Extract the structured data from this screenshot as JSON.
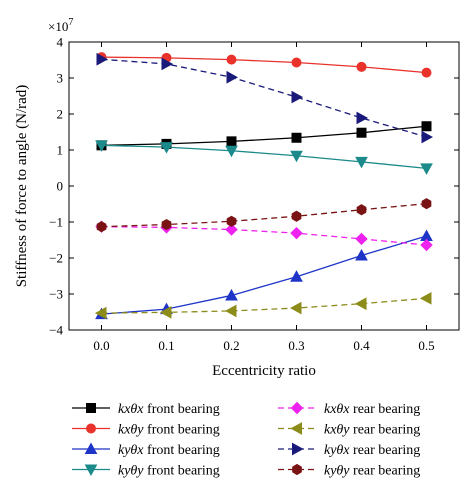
{
  "chart_data": {
    "type": "line",
    "xlabel": "Eccentricity ratio",
    "ylabel": "Stiffness of force to angle (N/rad)",
    "y_multiplier_label": "×10",
    "y_multiplier_exp": "7",
    "x": [
      0.0,
      0.1,
      0.2,
      0.3,
      0.4,
      0.5
    ],
    "x_tick_labels": [
      "0.0",
      "0.1",
      "0.2",
      "0.3",
      "0.4",
      "0.5"
    ],
    "xlim": [
      -0.05,
      0.55
    ],
    "ylim": [
      -4,
      4
    ],
    "y_ticks": [
      -4,
      -3,
      -2,
      -1,
      0,
      1,
      2,
      3,
      4
    ],
    "y_tick_labels": [
      "−4",
      "−3",
      "−2",
      "−1",
      "0",
      "1",
      "2",
      "3",
      "4"
    ],
    "grid": false,
    "legend_position": "bottom",
    "series": [
      {
        "name": "kxθx front bearing",
        "label_main": "kxθx",
        "label_suffix": " front bearing",
        "color": "#000000",
        "dash": "solid",
        "marker": "square",
        "values": [
          1.13,
          1.17,
          1.24,
          1.34,
          1.48,
          1.66
        ]
      },
      {
        "name": "kxθy front bearing",
        "label_main": "kxθy",
        "label_suffix": " front bearing",
        "color": "#e8322b",
        "dash": "solid",
        "marker": "circle",
        "values": [
          3.58,
          3.56,
          3.51,
          3.43,
          3.31,
          3.15
        ]
      },
      {
        "name": "kyθx front bearing",
        "label_main": "kyθx",
        "label_suffix": " front bearing",
        "color": "#1f35c8",
        "dash": "solid",
        "marker": "triangle-up",
        "values": [
          -3.56,
          -3.42,
          -3.04,
          -2.52,
          -1.93,
          -1.39
        ]
      },
      {
        "name": "kyθy front bearing",
        "label_main": "kyθy",
        "label_suffix": " front bearing",
        "color": "#1b8a8a",
        "dash": "solid",
        "marker": "triangle-down",
        "values": [
          1.13,
          1.08,
          0.98,
          0.84,
          0.67,
          0.49
        ]
      },
      {
        "name": "kxθx rear bearing",
        "label_main": "kxθx",
        "label_suffix": " rear bearing",
        "color": "#ee22ee",
        "dash": "dashed",
        "marker": "diamond",
        "values": [
          -1.13,
          -1.15,
          -1.21,
          -1.31,
          -1.47,
          -1.64
        ]
      },
      {
        "name": "kxθy rear bearing",
        "label_main": "kxθy",
        "label_suffix": " rear bearing",
        "color": "#8c8c1a",
        "dash": "dashed",
        "marker": "triangle-left",
        "values": [
          -3.53,
          -3.51,
          -3.47,
          -3.39,
          -3.27,
          -3.12
        ]
      },
      {
        "name": "kyθx rear bearing",
        "label_main": "kyθx",
        "label_suffix": " rear bearing",
        "color": "#1a1a7a",
        "dash": "dashed",
        "marker": "triangle-right",
        "values": [
          3.52,
          3.39,
          3.02,
          2.47,
          1.89,
          1.36
        ]
      },
      {
        "name": "kyθy rear bearing",
        "label_main": "kyθy",
        "label_suffix": " rear bearing",
        "color": "#7a1414",
        "dash": "dashed",
        "marker": "hexagon",
        "values": [
          -1.13,
          -1.07,
          -0.98,
          -0.84,
          -0.66,
          -0.49
        ]
      }
    ]
  }
}
